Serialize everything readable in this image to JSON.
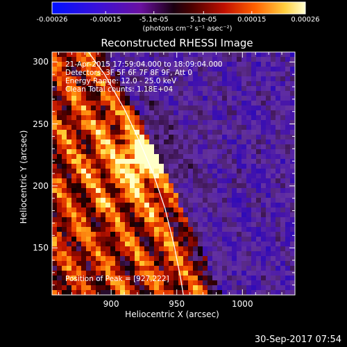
{
  "chart_data": {
    "type": "heatmap",
    "title": "Reconstructed RHESSI Image",
    "xlabel": "Heliocentric X (arcsec)",
    "ylabel": "Heliocentric Y (arcsec)",
    "xlim": [
      855,
      1040
    ],
    "ylim": [
      112,
      308
    ],
    "x_ticks": [
      900,
      950,
      1000
    ],
    "y_ticks": [
      150,
      200,
      250,
      300
    ],
    "colorbar": {
      "range": [
        -0.00026,
        0.00026
      ],
      "tick_labels": [
        "-0.00026",
        "-0.00015",
        "-5.1e-05",
        "5.1e-05",
        "0.00015",
        "0.00026"
      ],
      "tick_values": [
        -0.00026,
        -0.00015,
        -5.1e-05,
        5.1e-05,
        0.00015,
        0.00026
      ],
      "unit": "(photons cm⁻² s⁻¹ asec⁻²)"
    },
    "peak": [
      927,
      222
    ],
    "peak_value": 0.00026,
    "limb_curve": [
      [
        880,
        312
      ],
      [
        895,
        290
      ],
      [
        910,
        262
      ],
      [
        922,
        235
      ],
      [
        932,
        210
      ],
      [
        941,
        182
      ],
      [
        948,
        152
      ],
      [
        953,
        125
      ],
      [
        955,
        112
      ]
    ],
    "annotations": [
      "21-Apr-2015 17:59:04.000 to 18:09:04.000",
      "Detectors: 3F 5F 6F 7F 8F 9F, Att 0",
      "Energy Range: 12.0 - 25.0 keV",
      "Clean    Total counts: 1.18E+04"
    ],
    "peak_label": "Position of Peak = [927,222]"
  },
  "footer": {
    "date": "30-Sep-2017 07:54"
  }
}
